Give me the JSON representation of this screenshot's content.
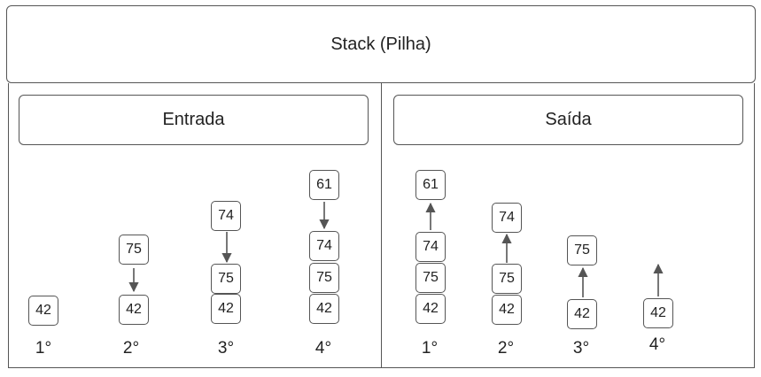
{
  "header": {
    "title": "Stack (Pilha)"
  },
  "entrada": {
    "label": "Entrada",
    "steps": [
      {
        "ordinal": "1°",
        "stack": [
          "42"
        ]
      },
      {
        "ordinal": "2°",
        "stack": [
          "42"
        ],
        "incoming": "75"
      },
      {
        "ordinal": "3°",
        "stack": [
          "42",
          "75"
        ],
        "incoming": "74"
      },
      {
        "ordinal": "4°",
        "stack": [
          "42",
          "75",
          "74"
        ],
        "incoming": "61"
      }
    ]
  },
  "saida": {
    "label": "Saída",
    "steps": [
      {
        "ordinal": "1°",
        "stack": [
          "42",
          "75",
          "74"
        ],
        "outgoing": "61"
      },
      {
        "ordinal": "2°",
        "stack": [
          "42",
          "75"
        ],
        "outgoing": "74"
      },
      {
        "ordinal": "3°",
        "stack": [
          "42"
        ],
        "outgoing": "75"
      },
      {
        "ordinal": "4°",
        "stack": [],
        "outgoing": "42"
      }
    ]
  }
}
